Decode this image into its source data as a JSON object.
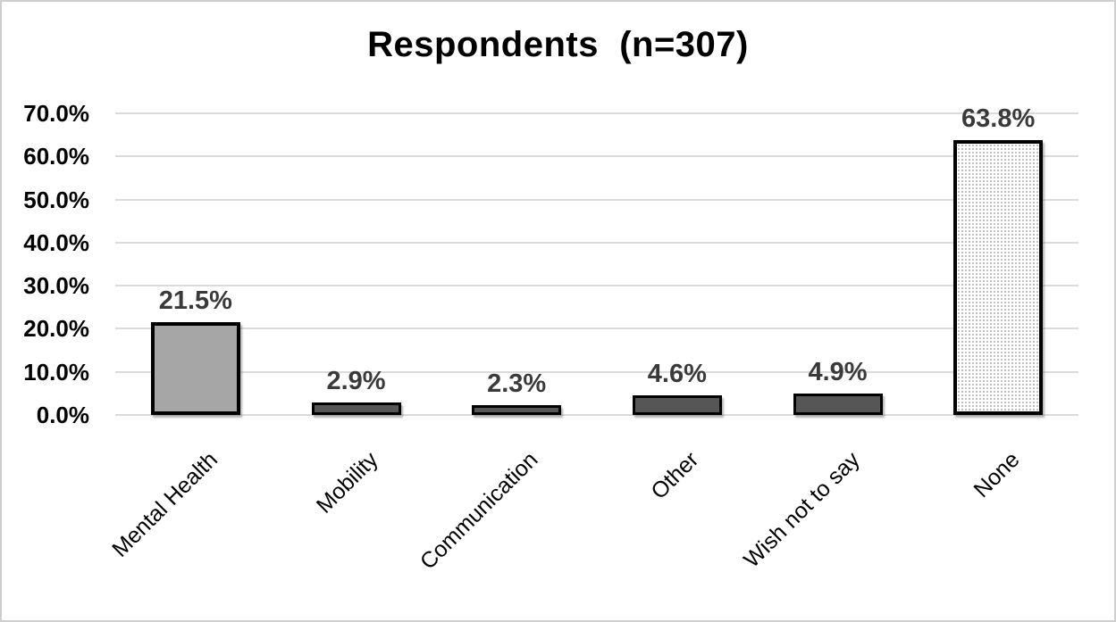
{
  "chart_data": {
    "type": "bar",
    "title": "Respondents  (n=307)",
    "categories": [
      "Mental Health",
      "Mobility",
      "Communication",
      "Other",
      "Wish not to say",
      "None"
    ],
    "values": [
      21.5,
      2.9,
      2.3,
      4.6,
      4.9,
      63.8
    ],
    "data_labels": [
      "21.5%",
      "2.9%",
      "2.3%",
      "4.6%",
      "4.9%",
      "63.8%"
    ],
    "xlabel": "",
    "ylabel": "",
    "ylim": [
      0,
      70
    ],
    "ytick_step": 10,
    "ytick_labels": [
      "0.0%",
      "10.0%",
      "20.0%",
      "30.0%",
      "40.0%",
      "50.0%",
      "60.0%",
      "70.0%"
    ],
    "grid": true,
    "legend": "none",
    "bar_styles": [
      "solid-medium",
      "solid-dark",
      "solid-dark",
      "solid-dark",
      "solid-dark",
      "dotted"
    ],
    "colors": {
      "bar_medium": "#A6A6A6",
      "bar_dark": "#565656",
      "bar_dotted_bg": "#FFFFFF",
      "bar_dotted_dot": "#BDBDBD",
      "bar_border": "#000000",
      "gridline": "#DBDBDB",
      "data_label": "#3A3A3A",
      "axis_label": "#000000",
      "title": "#000000",
      "frame_border": "#CFCFCF"
    }
  }
}
